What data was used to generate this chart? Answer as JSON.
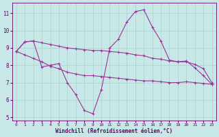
{
  "x": [
    0,
    1,
    2,
    3,
    4,
    5,
    6,
    7,
    8,
    9,
    10,
    11,
    12,
    13,
    14,
    15,
    16,
    17,
    18,
    19,
    20,
    21,
    22,
    23
  ],
  "line_main": [
    8.8,
    9.35,
    9.4,
    7.9,
    8.0,
    8.1,
    7.0,
    6.3,
    5.4,
    5.2,
    6.6,
    9.0,
    9.5,
    10.5,
    11.1,
    11.2,
    10.2,
    9.4,
    8.3,
    8.2,
    8.25,
    7.85,
    7.4,
    6.9
  ],
  "line_upper": [
    8.8,
    9.35,
    9.4,
    9.3,
    9.2,
    9.1,
    9.0,
    8.95,
    8.9,
    8.85,
    8.85,
    8.8,
    8.75,
    8.7,
    8.6,
    8.55,
    8.4,
    8.35,
    8.25,
    8.2,
    8.2,
    8.05,
    7.8,
    7.0
  ],
  "line_lower": [
    8.8,
    8.6,
    8.4,
    8.2,
    7.95,
    7.8,
    7.6,
    7.5,
    7.4,
    7.4,
    7.35,
    7.3,
    7.25,
    7.2,
    7.15,
    7.1,
    7.1,
    7.05,
    7.0,
    7.0,
    7.05,
    7.0,
    6.95,
    6.9
  ],
  "bg_color": "#c8e8e8",
  "line_color": "#993399",
  "grid_color": "#aacfcf",
  "axis_color": "#660066",
  "tick_color": "#660066",
  "xlabel": "Windchill (Refroidissement éolien,°C)",
  "ylim": [
    4.8,
    11.6
  ],
  "xlim": [
    -0.5,
    23.5
  ],
  "yticks": [
    5,
    6,
    7,
    8,
    9,
    10,
    11
  ],
  "xticks": [
    0,
    1,
    2,
    3,
    4,
    5,
    6,
    7,
    8,
    9,
    10,
    11,
    12,
    13,
    14,
    15,
    16,
    17,
    18,
    19,
    20,
    21,
    22,
    23
  ],
  "marker": "+",
  "markersize": 3.5,
  "linewidth": 0.8
}
